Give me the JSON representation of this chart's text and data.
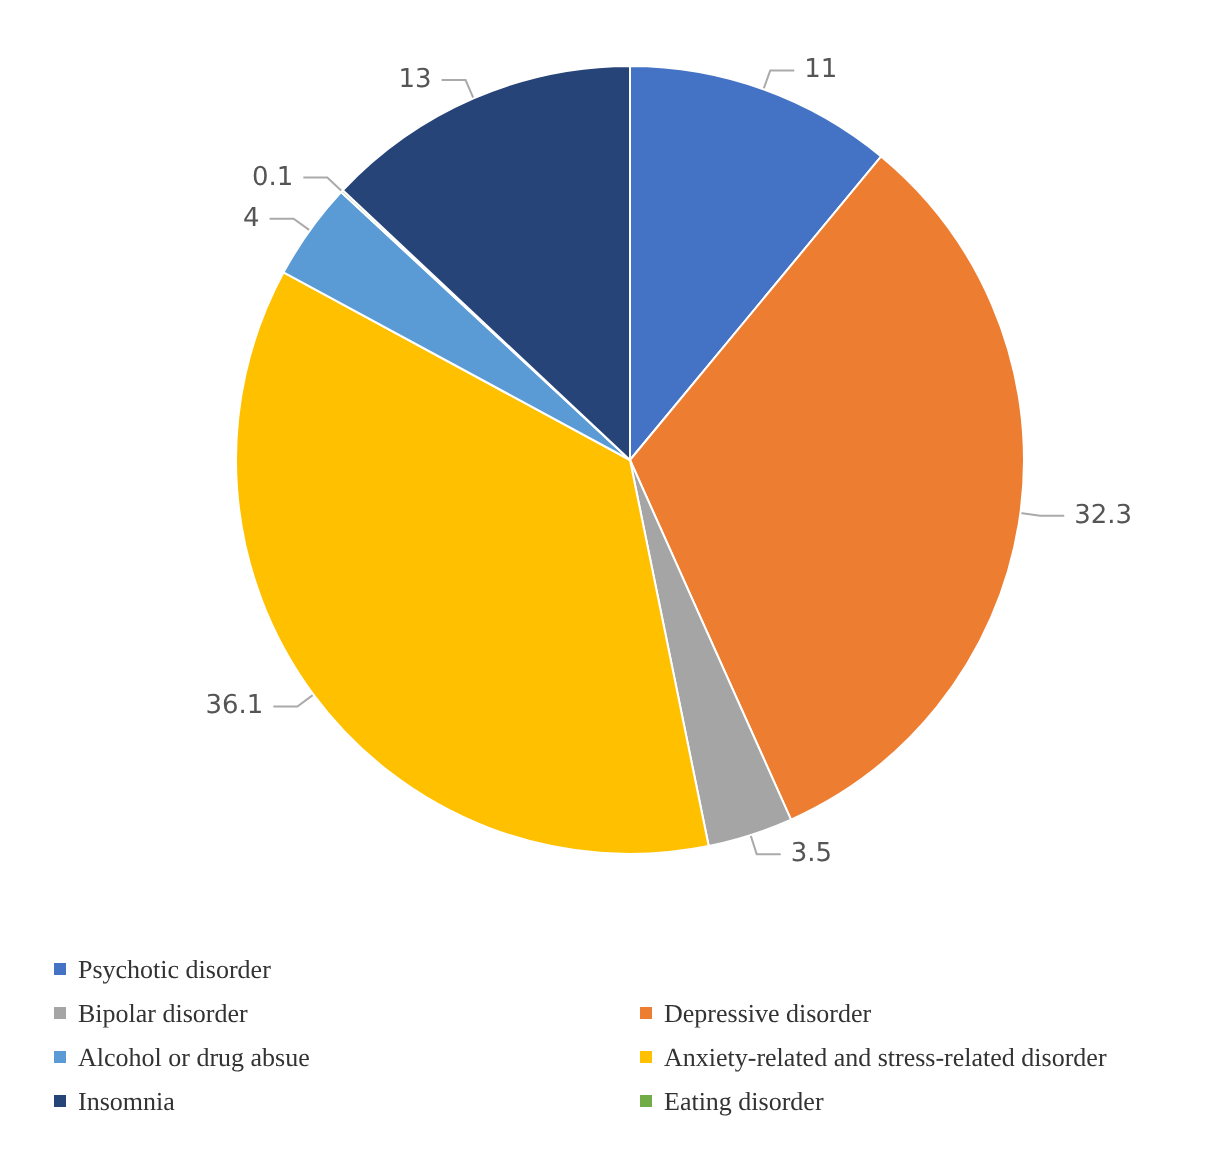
{
  "chart_data": {
    "type": "pie",
    "categories": [
      "Psychotic disorder",
      "Depressive disorder",
      "Bipolar disorder",
      "Anxiety-related and stress-related disorder",
      "Alcohol or drug absue",
      "Eating disorder",
      "Insomnia"
    ],
    "values": [
      11,
      32.3,
      3.5,
      36.1,
      4,
      0.1,
      13
    ],
    "colors": [
      "#4472c4",
      "#ed7d31",
      "#a5a5a5",
      "#ffc000",
      "#5b9bd5",
      "#70ad47",
      "#264478"
    ],
    "data_labels": true,
    "legend": "bottom"
  }
}
